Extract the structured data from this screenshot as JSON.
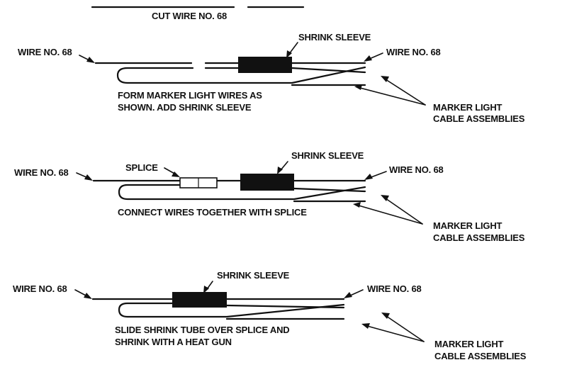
{
  "step1": {
    "cut_label": "CUT WIRE NO. 68",
    "wire_left": "WIRE NO. 68",
    "wire_right": "WIRE NO. 68",
    "sleeve": "SHRINK SLEEVE",
    "instruction_line1": "FORM MARKER LIGHT WIRES AS",
    "instruction_line2": "SHOWN. ADD SHRINK SLEEVE",
    "assemblies_line1": "MARKER LIGHT",
    "assemblies_line2": "CABLE ASSEMBLIES"
  },
  "step2": {
    "wire_left": "WIRE NO. 68",
    "wire_right": "WIRE NO. 68",
    "splice": "SPLICE",
    "sleeve": "SHRINK SLEEVE",
    "instruction": "CONNECT WIRES TOGETHER WITH SPLICE",
    "assemblies_line1": "MARKER LIGHT",
    "assemblies_line2": "CABLE ASSEMBLIES"
  },
  "step3": {
    "wire_left": "WIRE NO. 68",
    "wire_right": "WIRE NO. 68",
    "sleeve": "SHRINK SLEEVE",
    "instruction_line1": "SLIDE SHRINK TUBE OVER SPLICE AND",
    "instruction_line2": "SHRINK WITH A HEAT GUN",
    "assemblies_line1": "MARKER LIGHT",
    "assemblies_line2": "CABLE ASSEMBLIES"
  }
}
